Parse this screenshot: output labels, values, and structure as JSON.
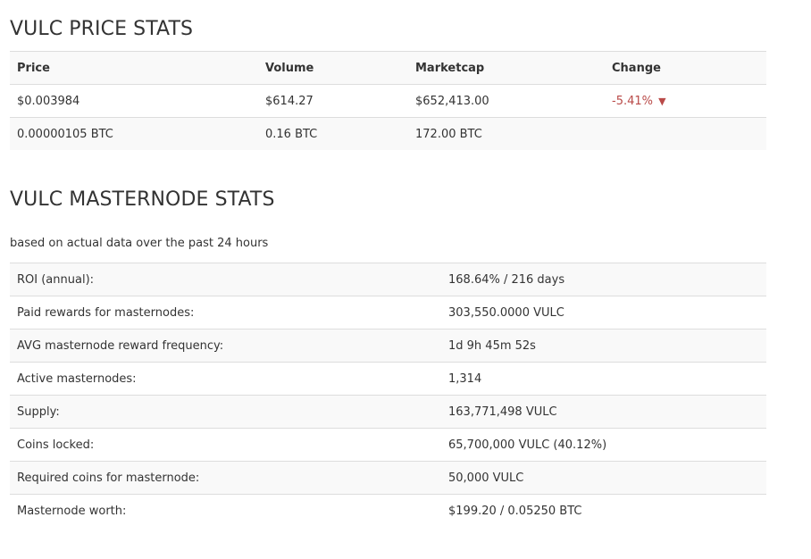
{
  "price_section": {
    "title": "VULC PRICE STATS",
    "headers": [
      "Price",
      "Volume",
      "Marketcap",
      "Change"
    ],
    "usd_row": {
      "price": "$0.003984",
      "volume": "$614.27",
      "marketcap": "$652,413.00",
      "change": "-5.41%"
    },
    "btc_row": {
      "price": "0.00000105 BTC",
      "volume": "0.16 BTC",
      "marketcap": "172.00 BTC",
      "change": ""
    },
    "change_direction": "down",
    "negative_color": "#b94a48"
  },
  "masternode_section": {
    "title": "VULC MASTERNODE STATS",
    "note": "based on actual data over the past 24 hours",
    "rows": [
      {
        "label": "ROI (annual):",
        "value": "168.64% / 216 days"
      },
      {
        "label": "Paid rewards for masternodes:",
        "value": "303,550.0000 VULC"
      },
      {
        "label": "AVG masternode reward frequency:",
        "value": "1d 9h 45m 52s"
      },
      {
        "label": "Active masternodes:",
        "value": "1,314"
      },
      {
        "label": "Supply:",
        "value": "163,771,498 VULC"
      },
      {
        "label": "Coins locked:",
        "value": "65,700,000 VULC (40.12%)"
      },
      {
        "label": "Required coins for masternode:",
        "value": "50,000 VULC"
      },
      {
        "label": "Masternode worth:",
        "value": "$199.20 / 0.05250 BTC"
      }
    ]
  }
}
